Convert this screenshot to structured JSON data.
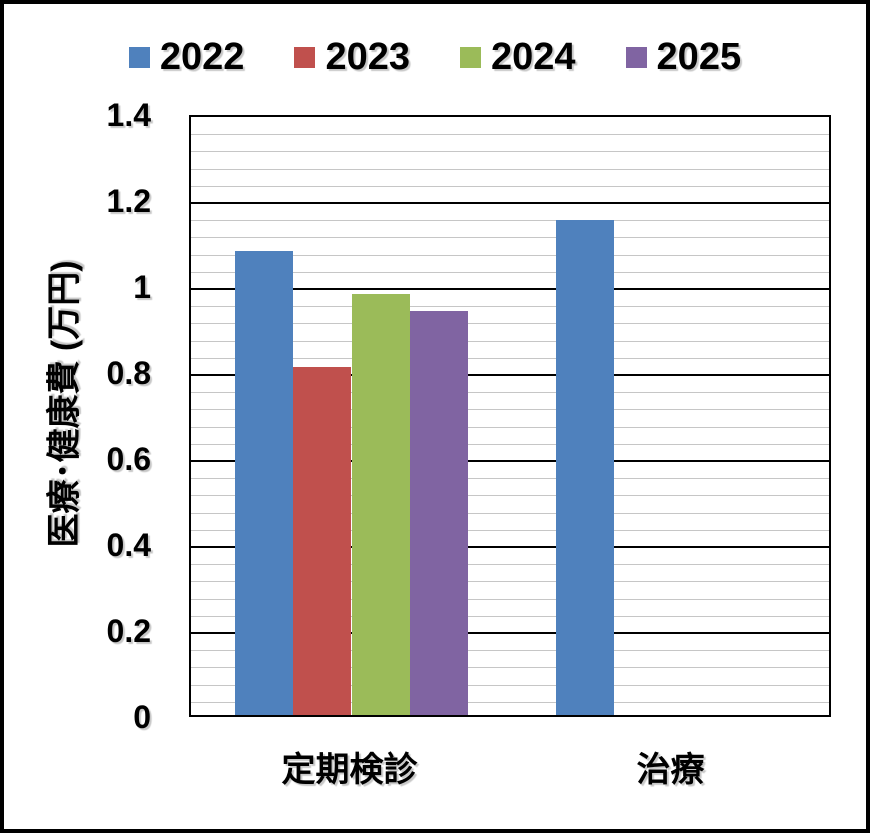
{
  "chart": {
    "background_color": "#FFFFFF",
    "outer_border_color": "#000000",
    "plot_border_color": "#000000",
    "major_grid_color": "#000000",
    "minor_grid_color": "#C6C6C6"
  },
  "chart_data": {
    "type": "bar",
    "title": "",
    "categories": [
      "定期検診",
      "治療"
    ],
    "series": [
      {
        "name": "2022",
        "color": "#4F81BD",
        "values": [
          1.08,
          1.15
        ]
      },
      {
        "name": "2023",
        "color": "#C0504D",
        "values": [
          0.81,
          null
        ]
      },
      {
        "name": "2024",
        "color": "#9BBB59",
        "values": [
          0.98,
          null
        ]
      },
      {
        "name": "2025",
        "color": "#8064A2",
        "values": [
          0.94,
          null
        ]
      }
    ],
    "xlabel": "",
    "ylabel": "医療･健康費 (万円)",
    "ylim": [
      0,
      1.4
    ],
    "y_major_unit": 0.2,
    "y_minor_unit": 0.04,
    "y_major_ticks": [
      0,
      0.2,
      0.4,
      0.6,
      0.8,
      1,
      1.2,
      1.4
    ],
    "y_tick_labels": [
      "0",
      "0.2",
      "0.4",
      "0.6",
      "0.8",
      "1",
      "1.2",
      "1.4"
    ],
    "grid": "horizontal major (black) + minor (light gray)",
    "legend_position": "top"
  }
}
